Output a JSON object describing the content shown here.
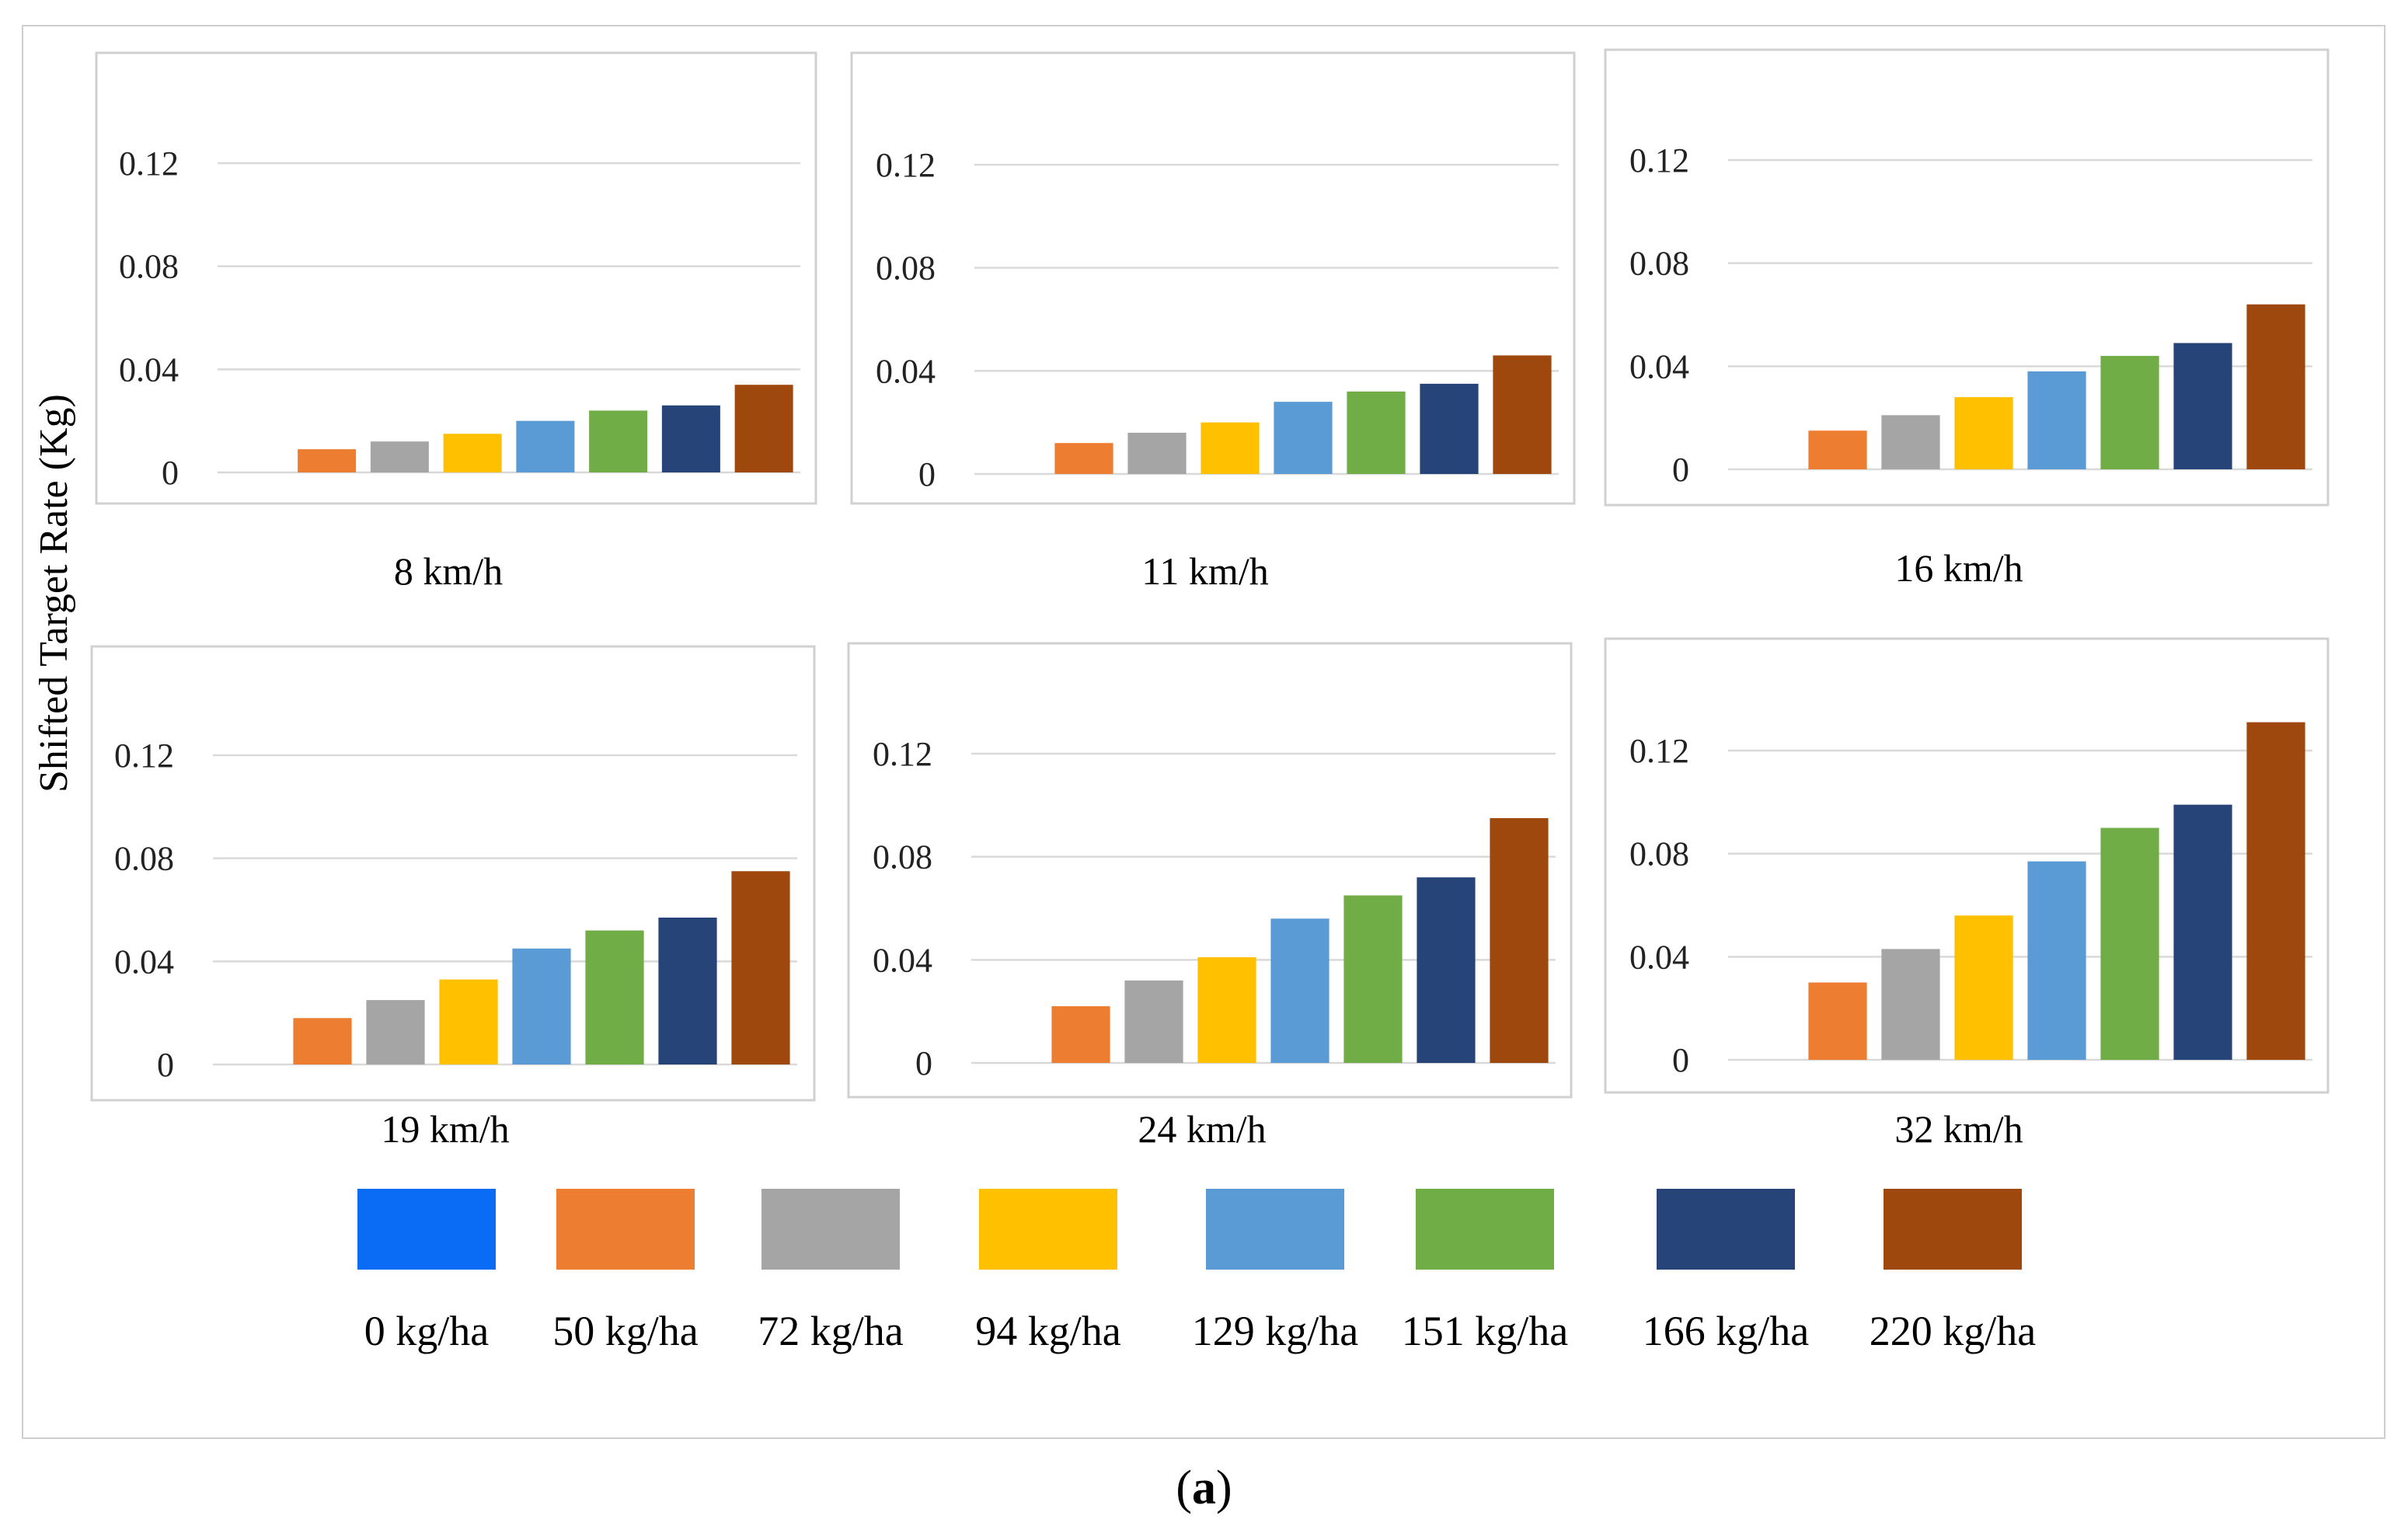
{
  "caption": {
    "open": "(",
    "letter": "a",
    "close": ")"
  },
  "y_axis_label": "Shifted Target Rate (Kg)",
  "colors": {
    "0 kg/ha": "#0a6cf5",
    "50 kg/ha": "#ed7d31",
    "72 kg/ha": "#a5a5a5",
    "94 kg/ha": "#ffc000",
    "129 kg/ha": "#5b9bd5",
    "151 kg/ha": "#70ad47",
    "166 kg/ha": "#264478",
    "220 kg/ha": "#9e480e"
  },
  "legend": [
    {
      "label": "0 kg/ha",
      "color": "#0a6cf5"
    },
    {
      "label": "50 kg/ha",
      "color": "#ed7d31"
    },
    {
      "label": "72 kg/ha",
      "color": "#a5a5a5"
    },
    {
      "label": "94 kg/ha",
      "color": "#ffc000"
    },
    {
      "label": "129 kg/ha",
      "color": "#5b9bd5"
    },
    {
      "label": "151 kg/ha",
      "color": "#70ad47"
    },
    {
      "label": "166 kg/ha",
      "color": "#264478"
    },
    {
      "label": "220 kg/ha",
      "color": "#9e480e"
    }
  ],
  "chart_data": [
    {
      "type": "bar",
      "title": "8 km/h",
      "ylim": [
        0,
        0.15
      ],
      "yticks": [
        0,
        0.04,
        0.08,
        0.12
      ],
      "ytick_labels": [
        "0",
        "0.04",
        "0.08",
        "0.12"
      ],
      "series": [
        {
          "name": "0 kg/ha",
          "value": 0
        },
        {
          "name": "50 kg/ha",
          "value": 0.009
        },
        {
          "name": "72 kg/ha",
          "value": 0.012
        },
        {
          "name": "94 kg/ha",
          "value": 0.015
        },
        {
          "name": "129 kg/ha",
          "value": 0.02
        },
        {
          "name": "151 kg/ha",
          "value": 0.024
        },
        {
          "name": "166 kg/ha",
          "value": 0.026
        },
        {
          "name": "220 kg/ha",
          "value": 0.034
        }
      ]
    },
    {
      "type": "bar",
      "title": "11 km/h",
      "ylim": [
        0,
        0.15
      ],
      "yticks": [
        0,
        0.04,
        0.08,
        0.12
      ],
      "ytick_labels": [
        "0",
        "0.04",
        "0.08",
        "0.12"
      ],
      "series": [
        {
          "name": "0 kg/ha",
          "value": 0
        },
        {
          "name": "50 kg/ha",
          "value": 0.012
        },
        {
          "name": "72 kg/ha",
          "value": 0.016
        },
        {
          "name": "94 kg/ha",
          "value": 0.02
        },
        {
          "name": "129 kg/ha",
          "value": 0.028
        },
        {
          "name": "151 kg/ha",
          "value": 0.032
        },
        {
          "name": "166 kg/ha",
          "value": 0.035
        },
        {
          "name": "220 kg/ha",
          "value": 0.046
        }
      ]
    },
    {
      "type": "bar",
      "title": "16 km/h",
      "ylim": [
        0,
        0.15
      ],
      "yticks": [
        0,
        0.04,
        0.08,
        0.12
      ],
      "ytick_labels": [
        "0",
        "0.04",
        "0.08",
        "0.12"
      ],
      "series": [
        {
          "name": "0 kg/ha",
          "value": 0
        },
        {
          "name": "50 kg/ha",
          "value": 0.015
        },
        {
          "name": "72 kg/ha",
          "value": 0.021
        },
        {
          "name": "94 kg/ha",
          "value": 0.028
        },
        {
          "name": "129 kg/ha",
          "value": 0.038
        },
        {
          "name": "151 kg/ha",
          "value": 0.044
        },
        {
          "name": "166 kg/ha",
          "value": 0.049
        },
        {
          "name": "220 kg/ha",
          "value": 0.064
        }
      ]
    },
    {
      "type": "bar",
      "title": "19 km/h",
      "ylim": [
        0,
        0.15
      ],
      "yticks": [
        0,
        0.04,
        0.08,
        0.12
      ],
      "ytick_labels": [
        "0",
        "0.04",
        "0.08",
        "0.12"
      ],
      "series": [
        {
          "name": "0 kg/ha",
          "value": 0
        },
        {
          "name": "50 kg/ha",
          "value": 0.018
        },
        {
          "name": "72 kg/ha",
          "value": 0.025
        },
        {
          "name": "94 kg/ha",
          "value": 0.033
        },
        {
          "name": "129 kg/ha",
          "value": 0.045
        },
        {
          "name": "151 kg/ha",
          "value": 0.052
        },
        {
          "name": "166 kg/ha",
          "value": 0.057
        },
        {
          "name": "220 kg/ha",
          "value": 0.075
        }
      ]
    },
    {
      "type": "bar",
      "title": "24 km/h",
      "ylim": [
        0,
        0.15
      ],
      "yticks": [
        0,
        0.04,
        0.08,
        0.12
      ],
      "ytick_labels": [
        "0",
        "0.04",
        "0.08",
        "0.12"
      ],
      "series": [
        {
          "name": "0 kg/ha",
          "value": 0
        },
        {
          "name": "50 kg/ha",
          "value": 0.022
        },
        {
          "name": "72 kg/ha",
          "value": 0.032
        },
        {
          "name": "94 kg/ha",
          "value": 0.041
        },
        {
          "name": "129 kg/ha",
          "value": 0.056
        },
        {
          "name": "151 kg/ha",
          "value": 0.065
        },
        {
          "name": "166 kg/ha",
          "value": 0.072
        },
        {
          "name": "220 kg/ha",
          "value": 0.095
        }
      ]
    },
    {
      "type": "bar",
      "title": "32 km/h",
      "ylim": [
        0,
        0.15
      ],
      "yticks": [
        0,
        0.04,
        0.08,
        0.12
      ],
      "ytick_labels": [
        "0",
        "0.04",
        "0.08",
        "0.12"
      ],
      "series": [
        {
          "name": "0 kg/ha",
          "value": 0
        },
        {
          "name": "50 kg/ha",
          "value": 0.03
        },
        {
          "name": "72 kg/ha",
          "value": 0.043
        },
        {
          "name": "94 kg/ha",
          "value": 0.056
        },
        {
          "name": "129 kg/ha",
          "value": 0.077
        },
        {
          "name": "151 kg/ha",
          "value": 0.09
        },
        {
          "name": "166 kg/ha",
          "value": 0.099
        },
        {
          "name": "220 kg/ha",
          "value": 0.131
        }
      ]
    }
  ]
}
